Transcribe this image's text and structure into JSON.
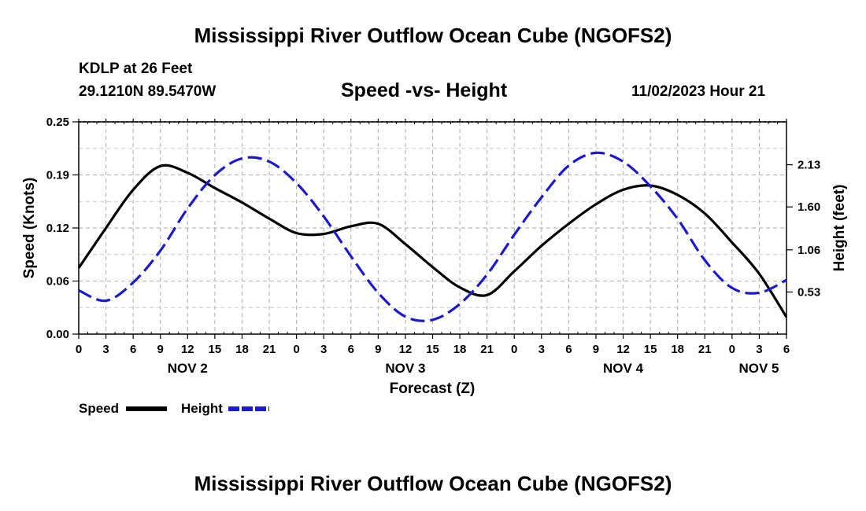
{
  "header": {
    "title": "Mississippi River Outflow Ocean Cube (NGOFS2)",
    "station": "KDLP at 26 Feet",
    "location": "29.1210N  89.5470W",
    "datetime": "11/02/2023 Hour 21"
  },
  "footer": {
    "title": "Mississippi River Outflow Ocean Cube (NGOFS2)"
  },
  "chart_data": {
    "type": "line",
    "title": "Speed -vs- Height",
    "xlabel": "Forecast (Z)",
    "ylabel_left": "Speed (Knots)",
    "ylabel_right": "Height (feet)",
    "x_range_hours": [
      0,
      78
    ],
    "x_tick_labels": [
      "0",
      "3",
      "6",
      "9",
      "12",
      "15",
      "18",
      "21",
      "0",
      "3",
      "6",
      "9",
      "12",
      "15",
      "18",
      "21",
      "0",
      "3",
      "6",
      "9",
      "12",
      "15",
      "18",
      "21",
      "0",
      "3",
      "6"
    ],
    "day_labels": [
      {
        "label": "NOV 2",
        "hour": 12
      },
      {
        "label": "NOV 3",
        "hour": 36
      },
      {
        "label": "NOV 4",
        "hour": 60
      },
      {
        "label": "NOV 5",
        "hour": 78
      }
    ],
    "y_left_range": [
      0,
      0.25
    ],
    "y_left_ticks": [
      "0.00",
      "0.06",
      "0.12",
      "0.19",
      "0.25"
    ],
    "y_left_tick_values": [
      0,
      0.0625,
      0.125,
      0.1875,
      0.25
    ],
    "y_right_range": [
      0.0,
      2.67
    ],
    "y_right_ticks": [
      "0.53",
      "1.06",
      "1.60",
      "2.13"
    ],
    "y_right_tick_values": [
      0.53,
      1.06,
      1.6,
      2.13
    ],
    "grid": true,
    "series": [
      {
        "name": "Speed",
        "axis": "left",
        "color": "#000000",
        "dash": "solid",
        "x": [
          0,
          3,
          6,
          9,
          12,
          15,
          18,
          21,
          24,
          27,
          30,
          33,
          36,
          39,
          42,
          45,
          48,
          51,
          54,
          57,
          60,
          63,
          66,
          69,
          72,
          75,
          78
        ],
        "y": [
          0.078,
          0.125,
          0.17,
          0.198,
          0.19,
          0.172,
          0.155,
          0.136,
          0.119,
          0.118,
          0.127,
          0.13,
          0.106,
          0.079,
          0.055,
          0.046,
          0.074,
          0.104,
          0.13,
          0.153,
          0.17,
          0.175,
          0.164,
          0.142,
          0.108,
          0.071,
          0.02
        ]
      },
      {
        "name": "Height",
        "axis": "right",
        "color": "#1a1ad0",
        "dash": "dashed",
        "x": [
          0,
          3,
          6,
          9,
          12,
          15,
          18,
          21,
          24,
          27,
          30,
          33,
          36,
          39,
          42,
          45,
          48,
          51,
          54,
          57,
          60,
          63,
          66,
          69,
          72,
          75,
          78
        ],
        "y": [
          0.55,
          0.42,
          0.65,
          1.05,
          1.58,
          2.0,
          2.21,
          2.17,
          1.9,
          1.48,
          0.98,
          0.52,
          0.22,
          0.18,
          0.38,
          0.75,
          1.25,
          1.72,
          2.12,
          2.28,
          2.17,
          1.86,
          1.45,
          0.93,
          0.58,
          0.52,
          0.68
        ]
      }
    ],
    "legend": [
      {
        "label": "Speed",
        "color": "#000000",
        "dash": "solid"
      },
      {
        "label": "Height",
        "color": "#1a1ad0",
        "dash": "dashed"
      }
    ]
  }
}
